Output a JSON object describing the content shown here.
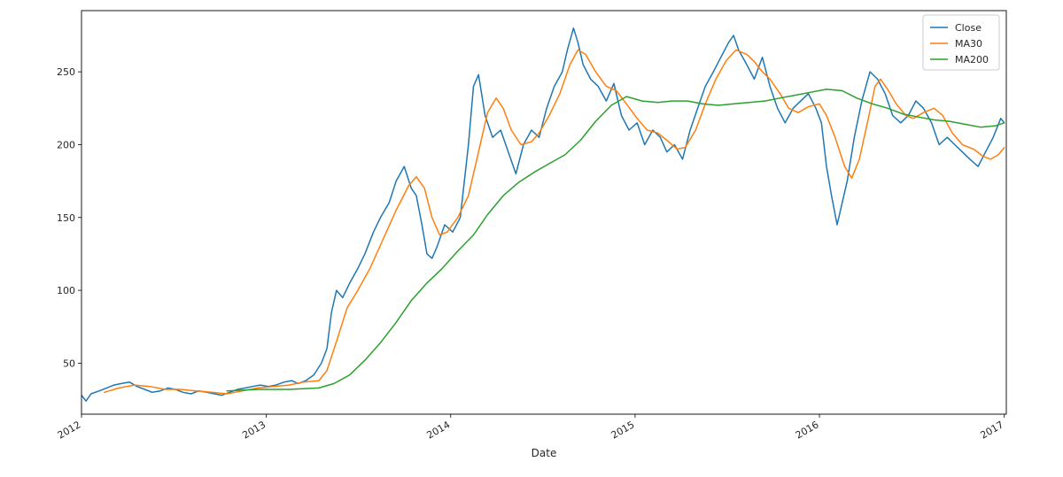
{
  "chart_data": {
    "type": "line",
    "title": "",
    "xlabel": "Date",
    "ylabel": "",
    "x_ticks": [
      "2012",
      "2013",
      "2014",
      "2015",
      "2016",
      "2017"
    ],
    "y_ticks": [
      50,
      100,
      150,
      200,
      250
    ],
    "xlim": [
      "2012-01-01",
      "2017-01-05"
    ],
    "ylim": [
      15,
      292
    ],
    "grid": false,
    "legend": "top-right",
    "series": [
      {
        "name": "Close",
        "color": "#1f77b4",
        "points": [
          [
            "2012-01-01",
            28
          ],
          [
            "2012-01-10",
            24
          ],
          [
            "2012-01-20",
            29
          ],
          [
            "2012-02-05",
            31
          ],
          [
            "2012-02-20",
            33
          ],
          [
            "2012-03-05",
            35
          ],
          [
            "2012-03-20",
            36
          ],
          [
            "2012-04-05",
            37
          ],
          [
            "2012-04-20",
            34
          ],
          [
            "2012-05-05",
            32
          ],
          [
            "2012-05-20",
            30
          ],
          [
            "2012-06-05",
            31
          ],
          [
            "2012-06-20",
            33
          ],
          [
            "2012-07-05",
            32
          ],
          [
            "2012-07-20",
            30
          ],
          [
            "2012-08-05",
            29
          ],
          [
            "2012-08-20",
            31
          ],
          [
            "2012-09-05",
            30
          ],
          [
            "2012-09-20",
            29
          ],
          [
            "2012-10-05",
            28
          ],
          [
            "2012-10-20",
            30
          ],
          [
            "2012-11-05",
            32
          ],
          [
            "2012-11-20",
            33
          ],
          [
            "2012-12-05",
            34
          ],
          [
            "2012-12-20",
            35
          ],
          [
            "2013-01-05",
            34
          ],
          [
            "2013-01-20",
            35
          ],
          [
            "2013-02-05",
            37
          ],
          [
            "2013-02-20",
            38
          ],
          [
            "2013-03-05",
            36
          ],
          [
            "2013-03-20",
            38
          ],
          [
            "2013-04-05",
            42
          ],
          [
            "2013-04-20",
            50
          ],
          [
            "2013-05-01",
            60
          ],
          [
            "2013-05-10",
            85
          ],
          [
            "2013-05-20",
            100
          ],
          [
            "2013-06-01",
            95
          ],
          [
            "2013-06-15",
            105
          ],
          [
            "2013-07-01",
            115
          ],
          [
            "2013-07-15",
            125
          ],
          [
            "2013-08-01",
            140
          ],
          [
            "2013-08-15",
            150
          ],
          [
            "2013-09-01",
            160
          ],
          [
            "2013-09-15",
            175
          ],
          [
            "2013-10-01",
            185
          ],
          [
            "2013-10-15",
            170
          ],
          [
            "2013-10-25",
            165
          ],
          [
            "2013-11-05",
            145
          ],
          [
            "2013-11-15",
            125
          ],
          [
            "2013-11-25",
            122
          ],
          [
            "2013-12-05",
            130
          ],
          [
            "2013-12-20",
            145
          ],
          [
            "2014-01-05",
            140
          ],
          [
            "2014-01-20",
            150
          ],
          [
            "2014-02-05",
            200
          ],
          [
            "2014-02-15",
            240
          ],
          [
            "2014-02-25",
            248
          ],
          [
            "2014-03-10",
            220
          ],
          [
            "2014-03-25",
            205
          ],
          [
            "2014-04-10",
            210
          ],
          [
            "2014-04-25",
            195
          ],
          [
            "2014-05-10",
            180
          ],
          [
            "2014-05-25",
            200
          ],
          [
            "2014-06-10",
            210
          ],
          [
            "2014-06-25",
            205
          ],
          [
            "2014-07-10",
            225
          ],
          [
            "2014-07-25",
            240
          ],
          [
            "2014-08-10",
            250
          ],
          [
            "2014-08-20",
            265
          ],
          [
            "2014-09-01",
            280
          ],
          [
            "2014-09-10",
            270
          ],
          [
            "2014-09-20",
            255
          ],
          [
            "2014-10-05",
            245
          ],
          [
            "2014-10-20",
            240
          ],
          [
            "2014-11-05",
            230
          ],
          [
            "2014-11-20",
            242
          ],
          [
            "2014-12-05",
            220
          ],
          [
            "2014-12-20",
            210
          ],
          [
            "2015-01-05",
            215
          ],
          [
            "2015-01-20",
            200
          ],
          [
            "2015-02-05",
            210
          ],
          [
            "2015-02-20",
            205
          ],
          [
            "2015-03-05",
            195
          ],
          [
            "2015-03-20",
            200
          ],
          [
            "2015-04-05",
            190
          ],
          [
            "2015-04-20",
            210
          ],
          [
            "2015-05-05",
            225
          ],
          [
            "2015-05-20",
            240
          ],
          [
            "2015-06-05",
            250
          ],
          [
            "2015-06-20",
            260
          ],
          [
            "2015-07-05",
            270
          ],
          [
            "2015-07-15",
            275
          ],
          [
            "2015-07-25",
            265
          ],
          [
            "2015-08-10",
            255
          ],
          [
            "2015-08-25",
            245
          ],
          [
            "2015-09-10",
            260
          ],
          [
            "2015-09-25",
            240
          ],
          [
            "2015-10-10",
            225
          ],
          [
            "2015-10-25",
            215
          ],
          [
            "2015-11-10",
            225
          ],
          [
            "2015-11-25",
            230
          ],
          [
            "2015-12-10",
            235
          ],
          [
            "2015-12-25",
            225
          ],
          [
            "2016-01-05",
            215
          ],
          [
            "2016-01-15",
            185
          ],
          [
            "2016-01-25",
            165
          ],
          [
            "2016-02-05",
            145
          ],
          [
            "2016-02-15",
            160
          ],
          [
            "2016-02-25",
            175
          ],
          [
            "2016-03-10",
            205
          ],
          [
            "2016-03-25",
            230
          ],
          [
            "2016-04-10",
            250
          ],
          [
            "2016-04-25",
            245
          ],
          [
            "2016-05-10",
            235
          ],
          [
            "2016-05-25",
            220
          ],
          [
            "2016-06-10",
            215
          ],
          [
            "2016-06-25",
            220
          ],
          [
            "2016-07-10",
            230
          ],
          [
            "2016-07-25",
            225
          ],
          [
            "2016-08-10",
            215
          ],
          [
            "2016-08-25",
            200
          ],
          [
            "2016-09-10",
            205
          ],
          [
            "2016-09-25",
            200
          ],
          [
            "2016-10-10",
            195
          ],
          [
            "2016-10-25",
            190
          ],
          [
            "2016-11-10",
            185
          ],
          [
            "2016-11-25",
            195
          ],
          [
            "2016-12-10",
            205
          ],
          [
            "2016-12-25",
            218
          ],
          [
            "2017-01-01",
            215
          ]
        ]
      },
      {
        "name": "MA30",
        "color": "#ff7f0e",
        "points": [
          [
            "2012-02-15",
            30
          ],
          [
            "2012-03-15",
            33
          ],
          [
            "2012-04-15",
            35
          ],
          [
            "2012-05-15",
            34
          ],
          [
            "2012-06-15",
            32
          ],
          [
            "2012-07-15",
            32
          ],
          [
            "2012-08-15",
            31
          ],
          [
            "2012-09-15",
            30
          ],
          [
            "2012-10-15",
            29
          ],
          [
            "2012-11-15",
            31
          ],
          [
            "2012-12-15",
            33
          ],
          [
            "2013-01-15",
            34
          ],
          [
            "2013-02-15",
            35
          ],
          [
            "2013-03-15",
            37
          ],
          [
            "2013-04-15",
            38
          ],
          [
            "2013-05-01",
            45
          ],
          [
            "2013-05-20",
            65
          ],
          [
            "2013-06-10",
            88
          ],
          [
            "2013-07-01",
            100
          ],
          [
            "2013-07-25",
            115
          ],
          [
            "2013-08-20",
            135
          ],
          [
            "2013-09-15",
            155
          ],
          [
            "2013-10-10",
            172
          ],
          [
            "2013-10-25",
            178
          ],
          [
            "2013-11-10",
            170
          ],
          [
            "2013-11-25",
            150
          ],
          [
            "2013-12-10",
            138
          ],
          [
            "2013-12-25",
            140
          ],
          [
            "2014-01-15",
            150
          ],
          [
            "2014-02-05",
            165
          ],
          [
            "2014-02-25",
            195
          ],
          [
            "2014-03-15",
            222
          ],
          [
            "2014-04-01",
            232
          ],
          [
            "2014-04-15",
            225
          ],
          [
            "2014-05-01",
            210
          ],
          [
            "2014-05-20",
            200
          ],
          [
            "2014-06-10",
            202
          ],
          [
            "2014-06-25",
            208
          ],
          [
            "2014-07-15",
            220
          ],
          [
            "2014-08-05",
            235
          ],
          [
            "2014-08-25",
            255
          ],
          [
            "2014-09-10",
            265
          ],
          [
            "2014-09-25",
            262
          ],
          [
            "2014-10-15",
            250
          ],
          [
            "2014-11-05",
            240
          ],
          [
            "2014-11-25",
            237
          ],
          [
            "2014-12-15",
            228
          ],
          [
            "2015-01-05",
            218
          ],
          [
            "2015-01-25",
            210
          ],
          [
            "2015-02-15",
            208
          ],
          [
            "2015-03-05",
            203
          ],
          [
            "2015-03-25",
            197
          ],
          [
            "2015-04-10",
            198
          ],
          [
            "2015-05-01",
            210
          ],
          [
            "2015-05-20",
            228
          ],
          [
            "2015-06-10",
            245
          ],
          [
            "2015-07-01",
            258
          ],
          [
            "2015-07-20",
            265
          ],
          [
            "2015-08-10",
            262
          ],
          [
            "2015-08-25",
            257
          ],
          [
            "2015-09-10",
            250
          ],
          [
            "2015-09-25",
            245
          ],
          [
            "2015-10-15",
            235
          ],
          [
            "2015-11-01",
            225
          ],
          [
            "2015-11-20",
            222
          ],
          [
            "2015-12-10",
            226
          ],
          [
            "2016-01-01",
            228
          ],
          [
            "2016-01-15",
            220
          ],
          [
            "2016-02-01",
            205
          ],
          [
            "2016-02-20",
            185
          ],
          [
            "2016-03-05",
            177
          ],
          [
            "2016-03-20",
            190
          ],
          [
            "2016-04-05",
            215
          ],
          [
            "2016-04-20",
            240
          ],
          [
            "2016-05-01",
            245
          ],
          [
            "2016-05-15",
            238
          ],
          [
            "2016-06-01",
            228
          ],
          [
            "2016-06-20",
            220
          ],
          [
            "2016-07-05",
            218
          ],
          [
            "2016-07-25",
            222
          ],
          [
            "2016-08-15",
            225
          ],
          [
            "2016-09-01",
            220
          ],
          [
            "2016-09-20",
            208
          ],
          [
            "2016-10-10",
            200
          ],
          [
            "2016-11-01",
            197
          ],
          [
            "2016-11-20",
            192
          ],
          [
            "2016-12-05",
            190
          ],
          [
            "2016-12-20",
            193
          ],
          [
            "2017-01-01",
            198
          ]
        ]
      },
      {
        "name": "MA200",
        "color": "#2ca02c",
        "points": [
          [
            "2012-10-15",
            31
          ],
          [
            "2012-12-15",
            32
          ],
          [
            "2013-02-15",
            32
          ],
          [
            "2013-04-15",
            33
          ],
          [
            "2013-05-15",
            36
          ],
          [
            "2013-06-15",
            42
          ],
          [
            "2013-07-15",
            52
          ],
          [
            "2013-08-15",
            64
          ],
          [
            "2013-09-15",
            78
          ],
          [
            "2013-10-15",
            93
          ],
          [
            "2013-11-15",
            105
          ],
          [
            "2013-12-15",
            115
          ],
          [
            "2014-01-15",
            127
          ],
          [
            "2014-02-15",
            138
          ],
          [
            "2014-03-15",
            152
          ],
          [
            "2014-04-15",
            165
          ],
          [
            "2014-05-15",
            174
          ],
          [
            "2014-06-15",
            181
          ],
          [
            "2014-07-15",
            187
          ],
          [
            "2014-08-15",
            193
          ],
          [
            "2014-09-15",
            203
          ],
          [
            "2014-10-15",
            216
          ],
          [
            "2014-11-15",
            227
          ],
          [
            "2014-12-15",
            233
          ],
          [
            "2015-01-15",
            230
          ],
          [
            "2015-02-15",
            229
          ],
          [
            "2015-03-15",
            230
          ],
          [
            "2015-04-15",
            230
          ],
          [
            "2015-05-15",
            228
          ],
          [
            "2015-06-15",
            227
          ],
          [
            "2015-07-15",
            228
          ],
          [
            "2015-08-15",
            229
          ],
          [
            "2015-09-15",
            230
          ],
          [
            "2015-10-15",
            232
          ],
          [
            "2015-11-15",
            234
          ],
          [
            "2015-12-15",
            236
          ],
          [
            "2016-01-15",
            238
          ],
          [
            "2016-02-15",
            237
          ],
          [
            "2016-03-15",
            232
          ],
          [
            "2016-04-15",
            228
          ],
          [
            "2016-05-15",
            225
          ],
          [
            "2016-06-15",
            221
          ],
          [
            "2016-07-15",
            219
          ],
          [
            "2016-08-15",
            217
          ],
          [
            "2016-09-15",
            216
          ],
          [
            "2016-10-15",
            214
          ],
          [
            "2016-11-15",
            212
          ],
          [
            "2016-12-15",
            213
          ],
          [
            "2017-01-01",
            215
          ]
        ]
      }
    ]
  }
}
